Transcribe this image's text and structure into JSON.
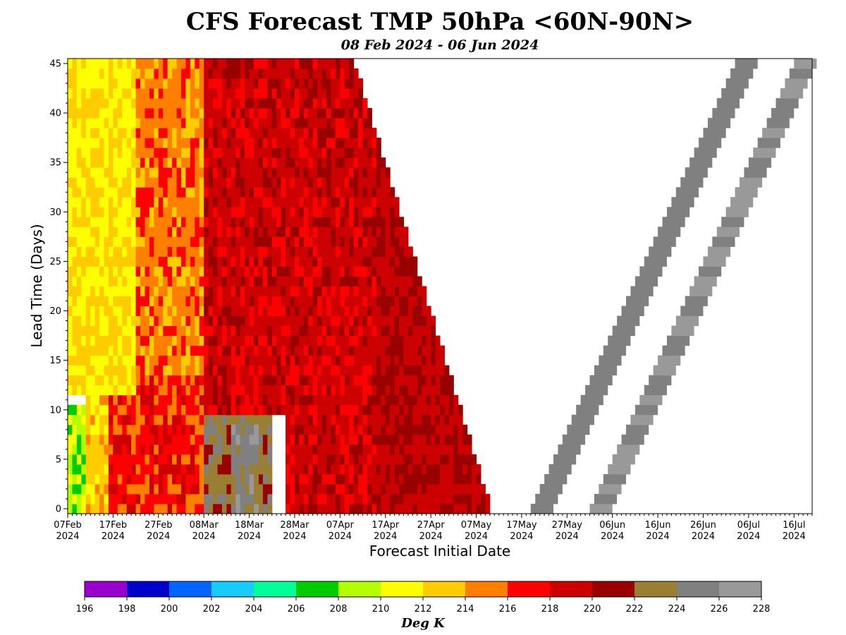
{
  "chart_data": {
    "type": "heatmap",
    "title": "CFS Forecast TMP 50hPa <60N-90N>",
    "subtitle": "08 Feb 2024 - 06 Jun 2024",
    "xlabel": "Forecast Initial Date",
    "ylabel": "Lead Time (Days)",
    "x_start_date": "2024-02-07",
    "x_range_days": [
      0,
      164
    ],
    "ylim": [
      0,
      45
    ],
    "x_ticks": [
      {
        "day": 0,
        "label": "07Feb",
        "year": "2024"
      },
      {
        "day": 10,
        "label": "17Feb",
        "year": "2024"
      },
      {
        "day": 20,
        "label": "27Feb",
        "year": "2024"
      },
      {
        "day": 30,
        "label": "08Mar",
        "year": "2024"
      },
      {
        "day": 40,
        "label": "18Mar",
        "year": "2024"
      },
      {
        "day": 50,
        "label": "28Mar",
        "year": "2024"
      },
      {
        "day": 60,
        "label": "07Apr",
        "year": "2024"
      },
      {
        "day": 70,
        "label": "17Apr",
        "year": "2024"
      },
      {
        "day": 80,
        "label": "27Apr",
        "year": "2024"
      },
      {
        "day": 90,
        "label": "07May",
        "year": "2024"
      },
      {
        "day": 100,
        "label": "17May",
        "year": "2024"
      },
      {
        "day": 110,
        "label": "27May",
        "year": "2024"
      },
      {
        "day": 120,
        "label": "06Jun",
        "year": "2024"
      },
      {
        "day": 130,
        "label": "16Jun",
        "year": "2024"
      },
      {
        "day": 140,
        "label": "26Jun",
        "year": "2024"
      },
      {
        "day": 150,
        "label": "06Jul",
        "year": "2024"
      },
      {
        "day": 160,
        "label": "16Jul",
        "year": "2024"
      }
    ],
    "y_ticks": [
      0,
      5,
      10,
      15,
      20,
      25,
      30,
      35,
      40,
      45
    ],
    "colorbar": {
      "label": "Deg K",
      "boundaries": [
        196,
        198,
        200,
        202,
        204,
        206,
        208,
        210,
        212,
        214,
        216,
        218,
        220,
        222,
        224,
        226,
        228
      ],
      "colors": [
        "#9900cc",
        "#0000cc",
        "#0066ff",
        "#19ccff",
        "#00ff99",
        "#00cc00",
        "#b3ff00",
        "#ffff00",
        "#ffcc00",
        "#ff8000",
        "#ff0000",
        "#cc0000",
        "#990000",
        "#997f33",
        "#808080",
        "#999999"
      ]
    },
    "field_regions": [
      {
        "init_days": [
          0,
          4
        ],
        "lead_days": [
          0,
          10
        ],
        "value": 209
      },
      {
        "init_days": [
          4,
          9
        ],
        "lead_days": [
          0,
          12
        ],
        "value": 213
      },
      {
        "init_days": [
          9,
          30
        ],
        "lead_days": [
          0,
          14
        ],
        "value": 217
      },
      {
        "init_days": [
          30,
          45
        ],
        "lead_days": [
          0,
          10
        ],
        "value": 223
      },
      {
        "init_days": [
          36,
          42
        ],
        "lead_days": [
          0,
          8
        ],
        "value": 225
      },
      {
        "init_days": [
          0,
          15
        ],
        "lead_days": [
          12,
          45
        ],
        "value": 212
      },
      {
        "init_days": [
          15,
          30
        ],
        "lead_days": [
          14,
          45
        ],
        "value": 215
      },
      {
        "init_days": [
          30,
          48
        ],
        "lead_days": [
          10,
          45
        ],
        "value": 219
      },
      {
        "init_days": [
          48,
          68
        ],
        "lead_days": [
          0,
          45
        ],
        "value": 219
      },
      {
        "init_days": [
          68,
          93
        ],
        "lead_days": [
          0,
          45
        ],
        "value": 220
      }
    ],
    "bands": [
      {
        "init_day_start_lead0": 102,
        "value": 225
      },
      {
        "init_day_start_lead0": 115,
        "value": 226
      }
    ],
    "band_width_days": 5,
    "band_slope_days_per_lead_day": 1.0
  }
}
